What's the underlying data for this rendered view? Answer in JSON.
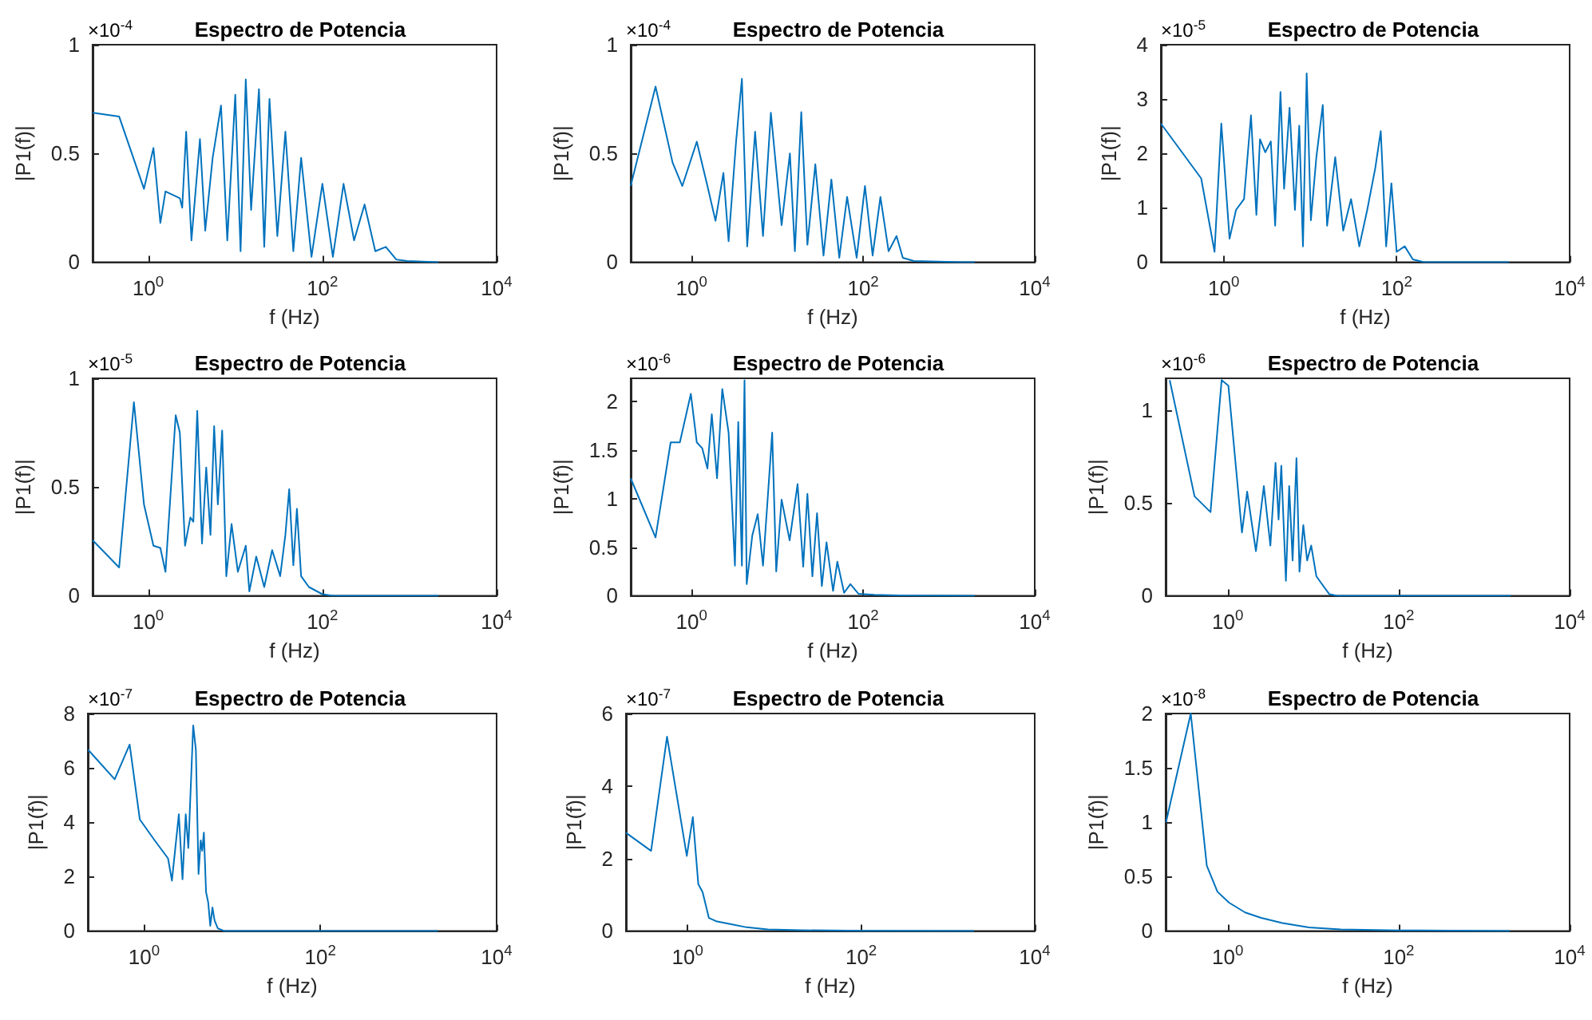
{
  "chart_data": [
    {
      "type": "line",
      "title": "Espectro de Potencia",
      "xlabel": "f (Hz)",
      "ylabel": "|P1(f)|",
      "annotations": [
        "×10$^{-4}$"
      ],
      "color": "#0072bd",
      "log": "x",
      "xlim": [
        0.23,
        10000
      ],
      "xticks": [
        {
          "value": 1,
          "label": "10$^{0}$"
        },
        {
          "value": 100,
          "label": "10$^{2}$"
        },
        {
          "value": 10000,
          "label": "10$^{4}$"
        }
      ],
      "ylim": [
        0,
        1
      ],
      "yticks": [
        0,
        0.5,
        1
      ],
      "x": [
        0.231,
        0.464,
        0.895,
        1.15,
        1.38,
        1.58,
        2.31,
        2.46,
        2.73,
        3.14,
        3.93,
        4.52,
        5.5,
        6.86,
        8.1,
        10,
        11.5,
        13.2,
        15.2,
        18.7,
        21.5,
        24.7,
        30.4,
        37.6,
        46.4,
        57,
        75,
        100,
        132,
        175,
        231,
        305,
        405,
        535,
        705,
        935,
        2150
      ],
      "values": [
        0.687,
        0.67,
        0.337,
        0.525,
        0.18,
        0.325,
        0.294,
        0.25,
        0.6,
        0.1,
        0.566,
        0.145,
        0.48,
        0.72,
        0.1,
        0.77,
        0.05,
        0.84,
        0.24,
        0.795,
        0.07,
        0.75,
        0.12,
        0.6,
        0.05,
        0.48,
        0.024,
        0.36,
        0.024,
        0.36,
        0.1,
        0.265,
        0.05,
        0.07,
        0.012,
        0.005,
        0
      ]
    },
    {
      "type": "line",
      "title": "Espectro de Potencia",
      "xlabel": "f (Hz)",
      "ylabel": "|P1(f)|",
      "annotations": [
        "×10$^{-4}$"
      ],
      "color": "#0072bd",
      "log": "x",
      "xlim": [
        0.195,
        10000
      ],
      "xticks": [
        {
          "value": 1,
          "label": "10$^{0}$"
        },
        {
          "value": 100,
          "label": "10$^{2}$"
        },
        {
          "value": 10000,
          "label": "10$^{4}$"
        }
      ],
      "ylim": [
        0,
        1
      ],
      "yticks": [
        0,
        0.5,
        1
      ],
      "x": [
        0.195,
        0.38,
        0.6,
        0.78,
        1.15,
        1.53,
        1.9,
        2.35,
        2.7,
        3.3,
        3.86,
        4.45,
        5.5,
        6.8,
        8.4,
        11.2,
        14,
        16,
        19,
        22.4,
        27.7,
        34.5,
        42.6,
        52.7,
        65,
        84,
        105,
        129,
        159,
        198,
        245,
        290,
        390,
        1400,
        2000
      ],
      "values": [
        0.35,
        0.807,
        0.458,
        0.35,
        0.554,
        0.35,
        0.19,
        0.41,
        0.096,
        0.554,
        0.843,
        0.072,
        0.6,
        0.12,
        0.687,
        0.17,
        0.5,
        0.05,
        0.69,
        0.08,
        0.45,
        0.03,
        0.38,
        0.02,
        0.3,
        0.02,
        0.35,
        0.03,
        0.3,
        0.05,
        0.12,
        0.02,
        0.005,
        0,
        0
      ]
    },
    {
      "type": "line",
      "title": "Espectro de Potencia",
      "xlabel": "f (Hz)",
      "ylabel": "|P1(f)|",
      "annotations": [
        "×10$^{-5}$"
      ],
      "color": "#0072bd",
      "log": "x",
      "xlim": [
        0.188,
        10000
      ],
      "xticks": [
        {
          "value": 1,
          "label": "10$^{0}$"
        },
        {
          "value": 100,
          "label": "10$^{2}$"
        },
        {
          "value": 10000,
          "label": "10$^{4}$"
        }
      ],
      "ylim": [
        0,
        4
      ],
      "yticks": [
        0,
        1,
        2,
        3,
        4
      ],
      "x": [
        0.188,
        0.55,
        0.785,
        0.94,
        1.17,
        1.39,
        1.72,
        2.07,
        2.39,
        2.63,
        3.03,
        3.51,
        3.94,
        4.54,
        5.0,
        5.78,
        6.67,
        7.48,
        8.26,
        9.12,
        10.2,
        11.8,
        14.0,
        15.7,
        19.5,
        24.1,
        29.7,
        37,
        45.7,
        56.6,
        65.5,
        75.6,
        87,
        100,
        124,
        154,
        205,
        2000
      ],
      "values": [
        2.55,
        1.54,
        0.19,
        2.55,
        0.43,
        0.96,
        1.16,
        2.7,
        0.87,
        2.26,
        2.02,
        2.22,
        0.67,
        3.13,
        1.35,
        2.84,
        0.96,
        2.51,
        0.29,
        3.47,
        0.77,
        1.93,
        2.89,
        0.67,
        1.93,
        0.58,
        1.16,
        0.29,
        0.96,
        1.73,
        2.41,
        0.29,
        1.45,
        0.19,
        0.29,
        0.05,
        0,
        0
      ]
    },
    {
      "type": "line",
      "title": "Espectro de Potencia",
      "xlabel": "f (Hz)",
      "ylabel": "|P1(f)|",
      "annotations": [
        "×10$^{-5}$"
      ],
      "color": "#0072bd",
      "log": "x",
      "xlim": [
        0.23,
        10000
      ],
      "xticks": [
        {
          "value": 1,
          "label": "10$^{0}$"
        },
        {
          "value": 100,
          "label": "10$^{2}$"
        },
        {
          "value": 10000,
          "label": "10$^{4}$"
        }
      ],
      "ylim": [
        0,
        1
      ],
      "yticks": [
        0,
        0.5,
        1
      ],
      "x": [
        0.231,
        0.464,
        0.686,
        0.895,
        1.15,
        1.38,
        1.58,
        2.07,
        2.31,
        2.65,
        3.05,
        3.3,
        3.66,
        4.15,
        4.64,
        5.19,
        5.72,
        6.31,
        7.07,
        7.89,
        9.07,
        10.7,
        13.2,
        14.5,
        17.4,
        21.5,
        26.5,
        32.8,
        37.6,
        41.6,
        46.4,
        51,
        57,
        70,
        100,
        132,
        2150
      ],
      "values": [
        0.255,
        0.13,
        0.89,
        0.42,
        0.23,
        0.22,
        0.11,
        0.83,
        0.75,
        0.23,
        0.36,
        0.34,
        0.85,
        0.24,
        0.59,
        0.28,
        0.78,
        0.42,
        0.76,
        0.09,
        0.33,
        0.11,
        0.23,
        0.02,
        0.18,
        0.04,
        0.21,
        0.09,
        0.28,
        0.49,
        0.14,
        0.4,
        0.09,
        0.04,
        0.007,
        0,
        0
      ]
    },
    {
      "type": "line",
      "title": "Espectro de Potencia",
      "xlabel": "f (Hz)",
      "ylabel": "|P1(f)|",
      "annotations": [
        "×10$^{-6}$"
      ],
      "color": "#0072bd",
      "log": "x",
      "xlim": [
        0.195,
        10000
      ],
      "xticks": [
        {
          "value": 1,
          "label": "10$^{0}$"
        },
        {
          "value": 100,
          "label": "10$^{2}$"
        },
        {
          "value": 10000,
          "label": "10$^{4}$"
        }
      ],
      "ylim": [
        0,
        2.24
      ],
      "yticks": [
        0,
        0.5,
        1,
        1.5,
        2
      ],
      "x": [
        0.195,
        0.38,
        0.57,
        0.73,
        0.98,
        1.15,
        1.33,
        1.53,
        1.72,
        1.98,
        2.28,
        2.7,
        3.2,
        3.5,
        3.86,
        4.14,
        4.39,
        5.1,
        5.9,
        6.8,
        7.6,
        8.7,
        9.7,
        11.2,
        13.9,
        17.2,
        20,
        22.4,
        25.6,
        29,
        33,
        37.4,
        44.6,
        50,
        60,
        71,
        88,
        135,
        257,
        2000
      ],
      "values": [
        1.21,
        0.6,
        1.58,
        1.58,
        2.08,
        1.58,
        1.52,
        1.31,
        1.87,
        1.21,
        2.13,
        1.68,
        0.31,
        1.79,
        0.31,
        2.22,
        0.12,
        0.62,
        0.84,
        0.31,
        0.92,
        1.68,
        0.25,
        0.99,
        0.57,
        1.15,
        0.3,
        1.05,
        0.2,
        0.85,
        0.1,
        0.55,
        0.05,
        0.35,
        0.03,
        0.12,
        0.02,
        0.01,
        0.003,
        0
      ]
    },
    {
      "type": "line",
      "title": "Espectro de Potencia",
      "xlabel": "f (Hz)",
      "ylabel": "|P1(f)|",
      "annotations": [
        "×10$^{-6}$"
      ],
      "color": "#0072bd",
      "log": "x",
      "xlim": [
        0.188,
        10000
      ],
      "xticks": [
        {
          "value": 1,
          "label": "10$^{0}$"
        },
        {
          "value": 100,
          "label": "10$^{2}$"
        },
        {
          "value": 10000,
          "label": "10$^{4}$"
        }
      ],
      "ylim": [
        0,
        1.17
      ],
      "yticks": [
        0,
        0.5,
        1
      ],
      "x": [
        0.21,
        0.41,
        0.63,
        0.85,
        1.02,
        1.47,
        1.69,
        2.14,
        2.65,
        3.16,
        3.63,
        3.94,
        4.24,
        4.8,
        5.24,
        5.75,
        6.38,
        6.92,
        7.67,
        8.5,
        9.48,
        10.9,
        12.6,
        15.5,
        19.3,
        2050
      ],
      "values": [
        1.16,
        0.535,
        0.45,
        1.16,
        1.13,
        0.34,
        0.56,
        0.24,
        0.59,
        0.27,
        0.715,
        0.41,
        0.7,
        0.08,
        0.59,
        0.19,
        0.74,
        0.13,
        0.38,
        0.19,
        0.27,
        0.105,
        0.064,
        0.008,
        0,
        0
      ]
    },
    {
      "type": "line",
      "title": "Espectro de Potencia",
      "xlabel": "f (Hz)",
      "ylabel": "|P1(f)|",
      "annotations": [
        "×10$^{-7}$"
      ],
      "color": "#0072bd",
      "log": "x",
      "xlim": [
        0.23,
        10000
      ],
      "xticks": [
        {
          "value": 1,
          "label": "10$^{0}$"
        },
        {
          "value": 100,
          "label": "10$^{2}$"
        },
        {
          "value": 10000,
          "label": "10$^{4}$"
        }
      ],
      "ylim": [
        0,
        8
      ],
      "yticks": [
        0,
        2,
        4,
        6,
        8
      ],
      "x": [
        0.231,
        0.464,
        0.686,
        0.895,
        1.32,
        1.87,
        2.07,
        2.48,
        2.73,
        2.97,
        3.18,
        3.61,
        3.87,
        4.15,
        4.39,
        4.57,
        4.77,
        5.05,
        5.34,
        5.64,
        5.97,
        6.31,
        6.86,
        8.1,
        2150
      ],
      "values": [
        6.67,
        5.58,
        6.86,
        4.1,
        3.33,
        2.67,
        1.85,
        4.29,
        1.9,
        4.29,
        3.05,
        7.56,
        6.67,
        2.1,
        3.33,
        2.95,
        3.62,
        1.43,
        1.05,
        0.19,
        0.86,
        0.38,
        0.095,
        0,
        0
      ]
    },
    {
      "type": "line",
      "title": "Espectro de Potencia",
      "xlabel": "f (Hz)",
      "ylabel": "|P1(f)|",
      "annotations": [
        "×10$^{-7}$"
      ],
      "color": "#0072bd",
      "log": "x",
      "xlim": [
        0.195,
        10000
      ],
      "xticks": [
        {
          "value": 1,
          "label": "10$^{0}$"
        },
        {
          "value": 100,
          "label": "10$^{2}$"
        },
        {
          "value": 10000,
          "label": "10$^{4}$"
        }
      ],
      "ylim": [
        0,
        6
      ],
      "yticks": [
        0,
        2,
        4,
        6
      ],
      "x": [
        0.195,
        0.38,
        0.58,
        0.98,
        1.15,
        1.33,
        1.49,
        1.76,
        2.18,
        3.1,
        4.8,
        8.4,
        20,
        109,
        2000
      ],
      "values": [
        2.71,
        2.21,
        5.36,
        2.07,
        3.14,
        1.29,
        1.07,
        0.36,
        0.26,
        0.19,
        0.1,
        0.04,
        0.02,
        0.003,
        0
      ]
    },
    {
      "type": "line",
      "title": "Espectro de Potencia",
      "xlabel": "f (Hz)",
      "ylabel": "|P1(f)|",
      "annotations": [
        "×10$^{-8}$"
      ],
      "color": "#0072bd",
      "log": "x",
      "xlim": [
        0.188,
        10000
      ],
      "xticks": [
        {
          "value": 1,
          "label": "10$^{0}$"
        },
        {
          "value": 100,
          "label": "10$^{2}$"
        },
        {
          "value": 10000,
          "label": "10$^{4}$"
        }
      ],
      "ylim": [
        0,
        2
      ],
      "yticks": [
        0,
        0.5,
        1,
        1.5,
        2
      ],
      "x": [
        0.19,
        0.37,
        0.57,
        0.76,
        1.04,
        1.6,
        2.46,
        4.36,
        8.9,
        21,
        100,
        2000
      ],
      "values": [
        1.0,
        2.0,
        0.6,
        0.36,
        0.26,
        0.17,
        0.12,
        0.072,
        0.033,
        0.014,
        0.005,
        0
      ]
    }
  ]
}
